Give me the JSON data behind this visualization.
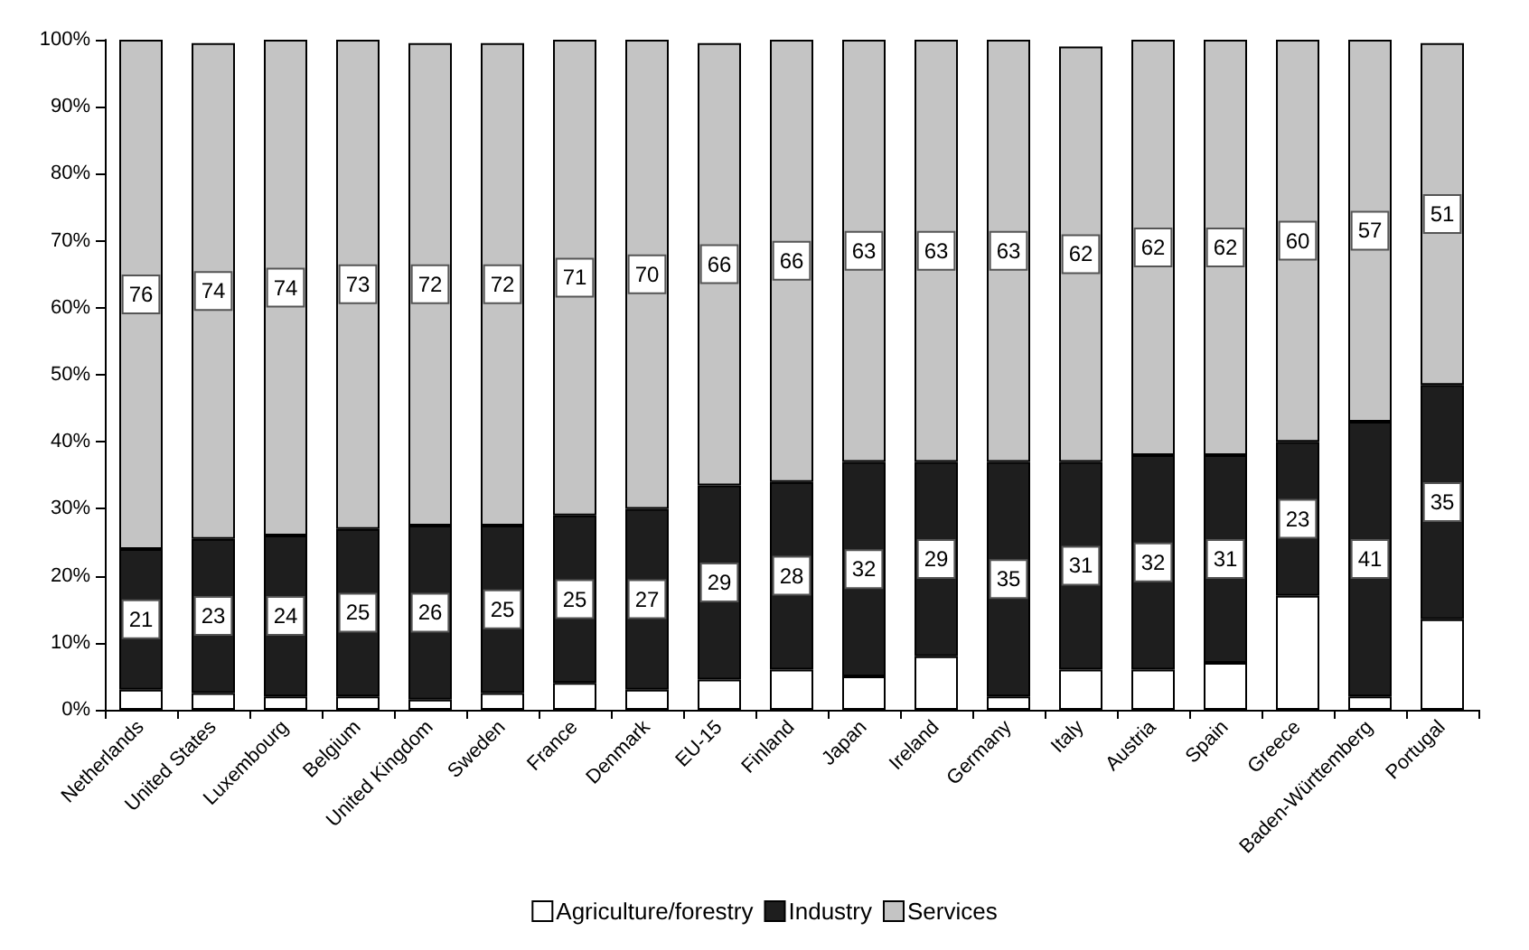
{
  "chart_data": {
    "type": "bar",
    "stacked": true,
    "categories": [
      "Netherlands",
      "United States",
      "Luxembourg",
      "Belgium",
      "United Kingdom",
      "Sweden",
      "France",
      "Denmark",
      "EU-15",
      "Finland",
      "Japan",
      "Ireland",
      "Germany",
      "Italy",
      "Austria",
      "Spain",
      "Greece",
      "Baden-Württemberg",
      "Portugal"
    ],
    "series": [
      {
        "name": "Agriculture/forestry",
        "color": "#ffffff",
        "values": [
          3,
          2.5,
          2,
          2,
          1.5,
          2.5,
          4,
          3,
          4.5,
          6,
          5,
          8,
          2,
          6,
          6,
          7,
          17,
          2,
          13.5
        ]
      },
      {
        "name": "Industry",
        "color": "#1e1e1e",
        "values": [
          21,
          23,
          24,
          25,
          26,
          25,
          25,
          27,
          29,
          28,
          32,
          29,
          35,
          31,
          32,
          31,
          23,
          41,
          35
        ],
        "value_labels": [
          "21",
          "23",
          "24",
          "25",
          "26",
          "25",
          "25",
          "27",
          "29",
          "28",
          "32",
          "29",
          "35",
          "31",
          "32",
          "31",
          "23",
          "41",
          "35"
        ]
      },
      {
        "name": "Services",
        "color": "#c4c4c4",
        "values": [
          76,
          74,
          74,
          73,
          72,
          72,
          71,
          70,
          66,
          66,
          63,
          63,
          63,
          62,
          62,
          62,
          60,
          57,
          51
        ],
        "value_labels": [
          "76",
          "74",
          "74",
          "73",
          "72",
          "72",
          "71",
          "70",
          "66",
          "66",
          "63",
          "63",
          "63",
          "62",
          "62",
          "62",
          "60",
          "57",
          "51"
        ]
      }
    ],
    "ylim": [
      0,
      100
    ],
    "yticks": [
      {
        "value": 0,
        "label": "0%"
      },
      {
        "value": 10,
        "label": "10%"
      },
      {
        "value": 20,
        "label": "20%"
      },
      {
        "value": 30,
        "label": "30%"
      },
      {
        "value": 40,
        "label": "40%"
      },
      {
        "value": 50,
        "label": "50%"
      },
      {
        "value": 60,
        "label": "60%"
      },
      {
        "value": 70,
        "label": "70%"
      },
      {
        "value": 80,
        "label": "80%"
      },
      {
        "value": 90,
        "label": "90%"
      },
      {
        "value": 100,
        "label": "100%"
      }
    ],
    "legend": "bottom",
    "grid": false
  }
}
